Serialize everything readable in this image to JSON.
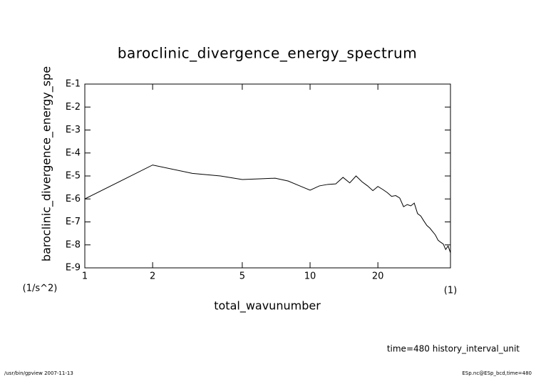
{
  "chart_data": {
    "type": "line",
    "title": "baroclinic_divergence_energy_spectrum",
    "x_label": "total_wavunumber",
    "x_unit": "(1)",
    "y_label": "baroclinic_divergence_energy_spe",
    "y_unit": "(1/s^2)",
    "annotation": "time=480 history_interval_unit",
    "xlog": true,
    "ylog": true,
    "color": "#000000",
    "x": [
      1,
      2,
      3,
      4,
      5,
      6,
      7,
      8,
      9,
      10,
      11,
      12,
      13,
      14,
      15,
      16,
      17,
      18,
      19,
      20,
      21,
      22,
      23,
      24,
      25,
      26,
      27,
      28,
      29,
      30,
      31,
      32,
      33,
      34,
      35,
      36,
      37,
      38,
      39,
      40,
      41,
      42
    ],
    "values": [
      1e-06,
      3e-05,
      1.3e-05,
      1e-05,
      7e-06,
      7.5e-06,
      8e-06,
      6e-06,
      3.7e-06,
      2.4e-06,
      3.7e-06,
      4.3e-06,
      4.5e-06,
      8.7e-06,
      5e-06,
      1e-05,
      5.6e-06,
      3.7e-06,
      2.3e-06,
      3.5e-06,
      2.6e-06,
      1.9e-06,
      1.3e-06,
      1.4e-06,
      1.1e-06,
      4.6e-07,
      5.7e-07,
      5e-07,
      6.6e-07,
      2.3e-07,
      1.8e-07,
      1.1e-07,
      7e-08,
      5.4e-08,
      3.8e-08,
      2.7e-08,
      1.6e-08,
      1.3e-08,
      1.1e-08,
      6.3e-09,
      9e-09,
      4.5e-09
    ],
    "xlim": [
      1,
      42
    ],
    "xticks": [
      1,
      2,
      5,
      10,
      20
    ],
    "ylim": [
      1e-09,
      0.1
    ],
    "yticks": [
      {
        "value": 0.1,
        "label": "E-1"
      },
      {
        "value": 0.01,
        "label": "E-2"
      },
      {
        "value": 0.001,
        "label": "E-3"
      },
      {
        "value": 0.0001,
        "label": "E-4"
      },
      {
        "value": 1e-05,
        "label": "E-5"
      },
      {
        "value": 1e-06,
        "label": "E-6"
      },
      {
        "value": 1e-07,
        "label": "E-7"
      },
      {
        "value": 1e-08,
        "label": "E-8"
      },
      {
        "value": 1e-09,
        "label": "E-9"
      }
    ]
  },
  "footer": {
    "left": "/usr/bin/gpview  2007-11-13",
    "right": "ESp.nc@ESp_bcd,time=480"
  }
}
